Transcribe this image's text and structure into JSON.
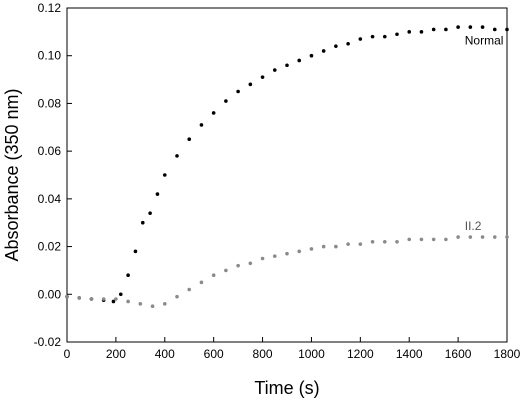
{
  "chart_data": {
    "type": "scatter",
    "title": "",
    "xlabel": "Time (s)",
    "ylabel": "Absorbance (350 nm)",
    "xlim": [
      0,
      1800
    ],
    "ylim": [
      -0.02,
      0.12
    ],
    "x_ticks": [
      0,
      200,
      400,
      600,
      800,
      1000,
      1200,
      1400,
      1600,
      1800
    ],
    "x_tick_labels": [
      "0",
      "200",
      "400",
      "600",
      "800",
      "1000",
      "1200",
      "1400",
      "1600",
      "1800"
    ],
    "y_ticks": [
      -0.02,
      0.0,
      0.02,
      0.04,
      0.06,
      0.08,
      0.1,
      0.12
    ],
    "y_tick_labels": [
      "-0.02",
      "0.00",
      "0.02",
      "0.04",
      "0.06",
      "0.08",
      "0.10",
      "0.12"
    ],
    "grid": false,
    "legend": "none",
    "series": [
      {
        "name": "Normal",
        "color": "#000000",
        "x": [
          0,
          50,
          100,
          150,
          190,
          220,
          250,
          280,
          310,
          340,
          370,
          400,
          450,
          500,
          550,
          600,
          650,
          700,
          750,
          800,
          850,
          900,
          950,
          1000,
          1050,
          1100,
          1150,
          1200,
          1250,
          1300,
          1350,
          1400,
          1450,
          1500,
          1550,
          1600,
          1650,
          1700,
          1750,
          1800
        ],
        "y": [
          -0.001,
          -0.0015,
          -0.002,
          -0.0025,
          -0.003,
          0.0,
          0.008,
          0.018,
          0.03,
          0.034,
          0.042,
          0.05,
          0.058,
          0.065,
          0.071,
          0.076,
          0.081,
          0.085,
          0.088,
          0.091,
          0.094,
          0.096,
          0.098,
          0.1,
          0.102,
          0.104,
          0.105,
          0.107,
          0.108,
          0.108,
          0.109,
          0.11,
          0.11,
          0.111,
          0.111,
          0.112,
          0.112,
          0.112,
          0.111,
          0.111
        ]
      },
      {
        "name": "II.2",
        "color": "#8a8a8a",
        "x": [
          0,
          50,
          100,
          150,
          200,
          250,
          300,
          350,
          400,
          450,
          500,
          550,
          600,
          650,
          700,
          750,
          800,
          850,
          900,
          950,
          1000,
          1050,
          1100,
          1150,
          1200,
          1250,
          1300,
          1350,
          1400,
          1450,
          1500,
          1550,
          1600,
          1650,
          1700,
          1750,
          1800
        ],
        "y": [
          -0.001,
          -0.0015,
          -0.002,
          -0.002,
          -0.002,
          -0.003,
          -0.004,
          -0.005,
          -0.004,
          -0.001,
          0.002,
          0.005,
          0.008,
          0.01,
          0.012,
          0.013,
          0.015,
          0.016,
          0.017,
          0.018,
          0.019,
          0.02,
          0.02,
          0.021,
          0.021,
          0.022,
          0.022,
          0.022,
          0.023,
          0.023,
          0.023,
          0.023,
          0.024,
          0.024,
          0.024,
          0.024,
          0.024
        ]
      }
    ]
  }
}
